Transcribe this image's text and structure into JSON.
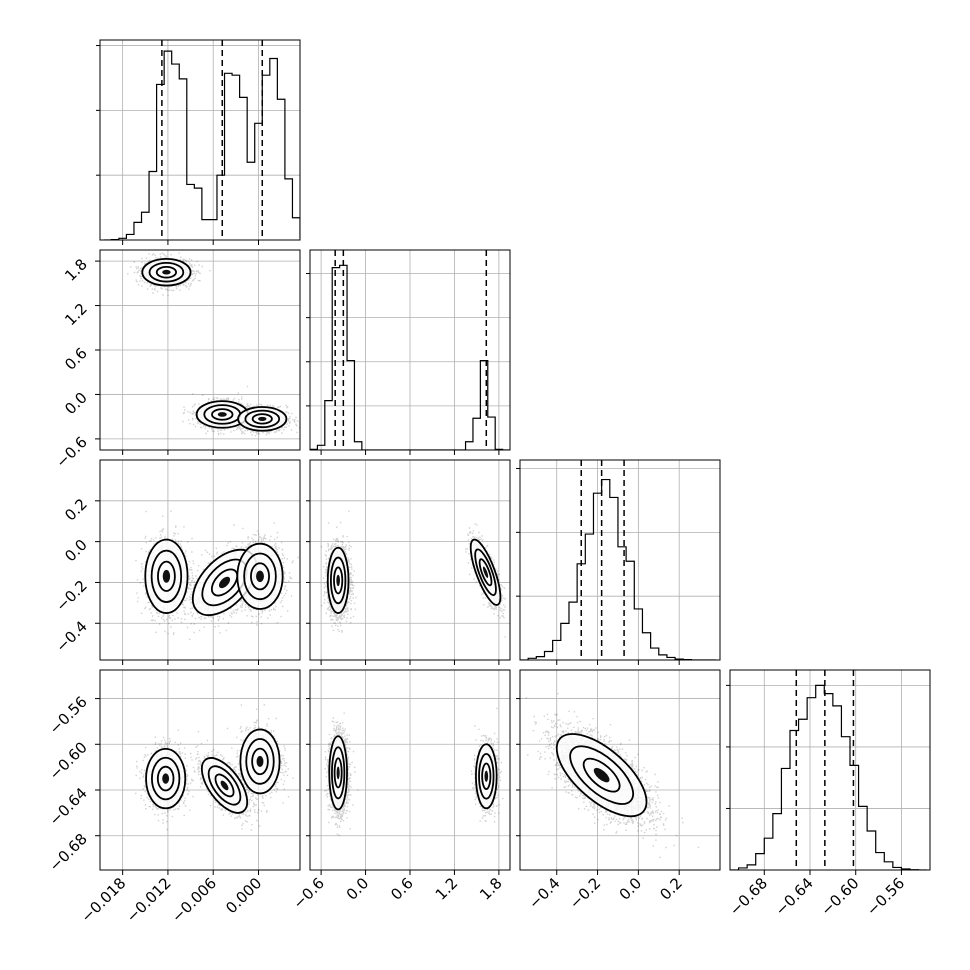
{
  "chart_data": {
    "type": "corner",
    "colors": {
      "line": "#000000",
      "grid": "#b0b0b0",
      "points": "#000000"
    },
    "grid": true,
    "params": [
      {
        "range": [
          -0.021,
          0.0055
        ],
        "ticks": [
          -0.018,
          -0.012,
          -0.006,
          0.0
        ],
        "tick_labels": [
          "−0.018",
          "−0.012",
          "−0.006",
          "0.000"
        ],
        "quantiles": [
          -0.0128,
          -0.0048,
          0.0005
        ]
      },
      {
        "range": [
          -0.75,
          1.95
        ],
        "ticks": [
          -0.6,
          0.0,
          0.6,
          1.2,
          1.8
        ],
        "tick_labels": [
          "−0.6",
          "0.0",
          "0.6",
          "1.2",
          "1.8"
        ],
        "quantiles": [
          -0.41,
          -0.3,
          1.63
        ]
      },
      {
        "range": [
          -0.58,
          0.4
        ],
        "ticks": [
          -0.4,
          -0.2,
          0.0,
          0.2
        ],
        "tick_labels": [
          "−0.4",
          "−0.2",
          "0.0",
          "0.2"
        ],
        "quantiles": [
          -0.28,
          -0.18,
          -0.07
        ]
      },
      {
        "range": [
          -0.71,
          -0.535
        ],
        "ticks": [
          -0.68,
          -0.64,
          -0.6,
          -0.56
        ],
        "tick_labels": [
          "−0.68",
          "−0.64",
          "−0.60",
          "−0.56"
        ],
        "quantiles": [
          -0.652,
          -0.627,
          -0.602
        ]
      }
    ],
    "histograms": [
      {
        "bins": [
          -0.0205,
          -0.0195,
          -0.0185,
          -0.0175,
          -0.0165,
          -0.0155,
          -0.0145,
          -0.0135,
          -0.0125,
          -0.0115,
          -0.0105,
          -0.0095,
          -0.0085,
          -0.0075,
          -0.0065,
          -0.0055,
          -0.0045,
          -0.0035,
          -0.0025,
          -0.0015,
          -0.0005,
          0.0005,
          0.0015,
          0.0025,
          0.0035,
          0.0045,
          0.0055
        ],
        "counts": [
          0,
          2,
          9,
          30,
          95,
          150,
          370,
          840,
          1020,
          950,
          870,
          300,
          280,
          110,
          110,
          350,
          900,
          890,
          770,
          420,
          630,
          890,
          980,
          760,
          330,
          120,
          10
        ],
        "ymax": 1080,
        "yticks": [
          350,
          700,
          1050
        ]
      },
      {
        "bins": [
          -0.75,
          -0.65,
          -0.55,
          -0.45,
          -0.35,
          -0.25,
          -0.15,
          -0.05,
          0.05,
          0.15,
          0.25,
          0.35,
          0.45,
          0.55,
          0.65,
          0.75,
          0.85,
          0.95,
          1.05,
          1.15,
          1.25,
          1.35,
          1.45,
          1.55,
          1.65,
          1.75,
          1.85,
          1.95
        ],
        "counts": [
          5,
          40,
          420,
          1550,
          1570,
          760,
          70,
          0,
          0,
          0,
          0,
          0,
          0,
          0,
          0,
          0,
          0,
          0,
          0,
          0,
          0,
          70,
          270,
          760,
          280,
          5,
          0
        ],
        "ymax": 1700,
        "yticks": [
          375,
          750,
          1125,
          1500
        ]
      },
      {
        "bins": [
          -0.58,
          -0.54,
          -0.5,
          -0.46,
          -0.42,
          -0.38,
          -0.34,
          -0.3,
          -0.26,
          -0.22,
          -0.18,
          -0.14,
          -0.1,
          -0.06,
          -0.02,
          0.02,
          0.06,
          0.1,
          0.14,
          0.18,
          0.22,
          0.26,
          0.3,
          0.34,
          0.38
        ],
        "counts": [
          0,
          20,
          40,
          100,
          230,
          430,
          680,
          1130,
          1480,
          1960,
          2120,
          1910,
          1330,
          1160,
          600,
          320,
          140,
          60,
          30,
          10,
          5,
          0,
          0,
          0
        ],
        "ymax": 2350,
        "yticks": [
          750,
          1500,
          2250
        ]
      },
      {
        "bins": [
          -0.71,
          -0.7025,
          -0.695,
          -0.6875,
          -0.68,
          -0.6725,
          -0.665,
          -0.6575,
          -0.65,
          -0.6425,
          -0.635,
          -0.6275,
          -0.62,
          -0.6125,
          -0.605,
          -0.5975,
          -0.59,
          -0.5825,
          -0.575,
          -0.5675,
          -0.56,
          -0.5525,
          -0.545,
          -0.5375
        ],
        "counts": [
          0,
          20,
          50,
          160,
          310,
          550,
          990,
          1360,
          1470,
          1680,
          1800,
          1720,
          1600,
          1300,
          1020,
          620,
          380,
          170,
          80,
          25,
          10,
          3,
          0
        ],
        "ymax": 1950,
        "yticks": [
          600,
          1200,
          1800
        ]
      }
    ],
    "pairs": [
      {
        "x": 0,
        "y": 1,
        "modes": [
          {
            "mx": -0.0122,
            "my": 1.65,
            "sx": 0.0016,
            "sy": 0.09,
            "rho": 0,
            "n": 1300
          },
          {
            "mx": -0.0048,
            "my": -0.27,
            "sx": 0.0017,
            "sy": 0.09,
            "rho": 0,
            "n": 1200
          },
          {
            "mx": 0.0005,
            "my": -0.33,
            "sx": 0.0016,
            "sy": 0.08,
            "rho": 0,
            "n": 1200
          }
        ]
      },
      {
        "x": 0,
        "y": 2,
        "modes": [
          {
            "mx": -0.0122,
            "my": -0.17,
            "sx": 0.0014,
            "sy": 0.09,
            "rho": 0,
            "n": 1300
          },
          {
            "mx": -0.0045,
            "my": -0.2,
            "sx": 0.0021,
            "sy": 0.08,
            "rho": 0.5,
            "n": 1300
          },
          {
            "mx": 0.0002,
            "my": -0.17,
            "sx": 0.0015,
            "sy": 0.08,
            "rho": 0,
            "n": 1300
          }
        ]
      },
      {
        "x": 1,
        "y": 2,
        "modes": [
          {
            "mx": -0.37,
            "my": -0.19,
            "sx": 0.07,
            "sy": 0.08,
            "rho": 0,
            "n": 2600
          },
          {
            "mx": 1.62,
            "my": -0.15,
            "sx": 0.1,
            "sy": 0.08,
            "rho": -0.75,
            "n": 1100
          }
        ]
      },
      {
        "x": 0,
        "y": 3,
        "modes": [
          {
            "mx": -0.0123,
            "my": -0.63,
            "sx": 0.0013,
            "sy": 0.013,
            "rho": 0,
            "n": 1300
          },
          {
            "mx": -0.0045,
            "my": -0.636,
            "sx": 0.0015,
            "sy": 0.012,
            "rho": -0.6,
            "n": 1300
          },
          {
            "mx": 0.0002,
            "my": -0.615,
            "sx": 0.0013,
            "sy": 0.014,
            "rho": 0,
            "n": 1300
          }
        ]
      },
      {
        "x": 1,
        "y": 3,
        "modes": [
          {
            "mx": -0.37,
            "my": -0.625,
            "sx": 0.06,
            "sy": 0.016,
            "rho": 0,
            "n": 2600
          },
          {
            "mx": 1.63,
            "my": -0.628,
            "sx": 0.07,
            "sy": 0.014,
            "rho": 0,
            "n": 1100
          }
        ]
      },
      {
        "x": 2,
        "y": 3,
        "modes": [
          {
            "mx": -0.18,
            "my": -0.627,
            "sx": 0.11,
            "sy": 0.018,
            "rho": -0.65,
            "n": 3800
          }
        ]
      }
    ]
  }
}
